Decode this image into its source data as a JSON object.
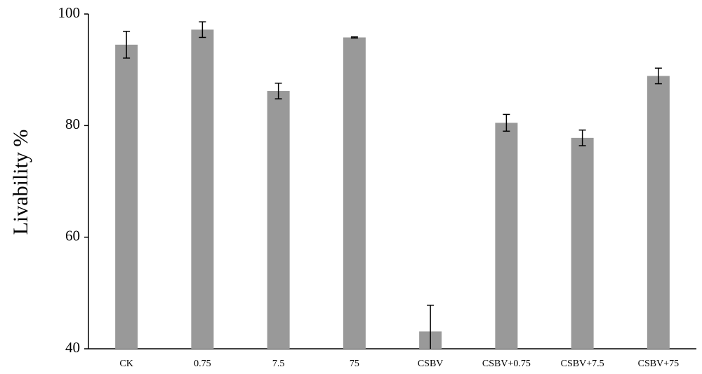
{
  "chart_data": {
    "type": "bar",
    "y_label": "Livability %",
    "categories": [
      "CK",
      "0.75",
      "7.5",
      "75",
      "CSBV",
      "CSBV+0.75",
      "CSBV+7.5",
      "CSBV+75"
    ],
    "values": [
      94.5,
      97.2,
      86.2,
      95.8,
      43.1,
      80.5,
      77.8,
      88.9
    ],
    "errors": [
      2.4,
      1.4,
      1.4,
      0.1,
      4.7,
      1.5,
      1.4,
      1.4
    ],
    "color": "#999999",
    "ylim": [
      40,
      100
    ],
    "yticks": [
      40,
      60,
      80,
      100
    ],
    "grid": false
  }
}
